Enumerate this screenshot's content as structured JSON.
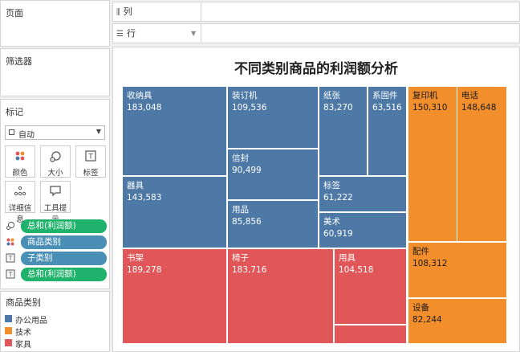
{
  "sidebar": {
    "pages_title": "页面",
    "filters_title": "筛选器",
    "marks_title": "标记",
    "mark_type": "自动",
    "buttons": [
      {
        "label": "颜色",
        "icon": "color-dots-icon"
      },
      {
        "label": "大小",
        "icon": "size-icon"
      },
      {
        "label": "标签",
        "icon": "label-icon"
      },
      {
        "label": "详细信息",
        "icon": "detail-icon"
      },
      {
        "label": "工具提示",
        "icon": "tooltip-icon"
      }
    ],
    "pills": [
      {
        "label": "总和(利润额)",
        "icon": "size-icon",
        "color": "#1eb26c"
      },
      {
        "label": "商品类别",
        "icon": "color-dots-icon",
        "color": "#4a8fb5"
      },
      {
        "label": "子类别",
        "icon": "label-icon",
        "color": "#4a8fb5"
      },
      {
        "label": "总和(利润额)",
        "icon": "label-icon",
        "color": "#1eb26c"
      }
    ],
    "legend_title": "商品类别",
    "legend": [
      {
        "label": "办公用品",
        "color": "#4e79a7"
      },
      {
        "label": "技术",
        "color": "#f28e2b"
      },
      {
        "label": "家具",
        "color": "#e15759"
      }
    ]
  },
  "shelves": {
    "columns_label": "列",
    "rows_label": "行"
  },
  "chart_data": {
    "type": "treemap",
    "title": "不同类别商品的利润额分析",
    "nodes": [
      {
        "category": "办公用品",
        "name": "收纳具",
        "value": "183,048"
      },
      {
        "category": "办公用品",
        "name": "装订机",
        "value": "109,536"
      },
      {
        "category": "办公用品",
        "name": "纸张",
        "value": "83,270"
      },
      {
        "category": "办公用品",
        "name": "系固件",
        "value": "63,516"
      },
      {
        "category": "办公用品",
        "name": "器具",
        "value": "143,583"
      },
      {
        "category": "办公用品",
        "name": "信封",
        "value": "90,499"
      },
      {
        "category": "办公用品",
        "name": "标签",
        "value": "61,222"
      },
      {
        "category": "办公用品",
        "name": "用品",
        "value": "85,856"
      },
      {
        "category": "办公用品",
        "name": "美术",
        "value": "60,919"
      },
      {
        "category": "技术",
        "name": "复印机",
        "value": "150,310"
      },
      {
        "category": "技术",
        "name": "电话",
        "value": "148,648"
      },
      {
        "category": "技术",
        "name": "配件",
        "value": "108,312"
      },
      {
        "category": "技术",
        "name": "设备",
        "value": "82,244"
      },
      {
        "category": "家具",
        "name": "书架",
        "value": "189,278"
      },
      {
        "category": "家具",
        "name": "椅子",
        "value": "183,716"
      },
      {
        "category": "家具",
        "name": "用具",
        "value": "104,518"
      },
      {
        "category": "家具",
        "name": "",
        "value": ""
      }
    ]
  }
}
